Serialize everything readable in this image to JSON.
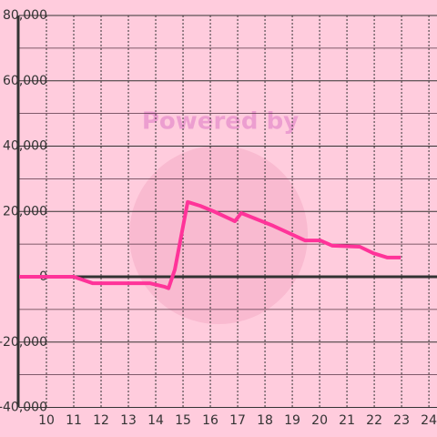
{
  "chart_data": {
    "type": "line",
    "watermark": "Powered by",
    "series": [
      {
        "color": "#ff3399",
        "x": [
          9,
          11,
          11.7,
          13.8,
          14.3,
          14.47,
          14.7,
          15.17,
          15.63,
          16.13,
          16.9,
          17.13,
          18.3,
          19.47,
          20.03,
          20.47,
          21.47,
          21.97,
          22.47,
          22.97
        ],
        "values": [
          0,
          0,
          -2000,
          -2000,
          -3000,
          -3500,
          2200,
          22900,
          21700,
          20000,
          17000,
          19500,
          15600,
          11100,
          11100,
          9500,
          9200,
          7200,
          5900,
          5900
        ]
      }
    ],
    "xlim": [
      9,
      24.33
    ],
    "xticks": [
      10,
      11,
      12,
      13,
      14,
      15,
      16,
      17,
      18,
      19,
      20,
      21,
      22,
      23,
      24
    ],
    "ylim": [
      -40000,
      80000
    ],
    "yticks": [
      {
        "value": -40000,
        "label": "-40,000"
      },
      {
        "value": -20000,
        "label": "-20,000"
      },
      0,
      {
        "value": 20000,
        "label": "20,000"
      },
      {
        "value": 40000,
        "label": "40,000"
      },
      {
        "value": 60000,
        "label": "60,000"
      },
      {
        "value": 80000,
        "label": "80,000"
      }
    ],
    "minor_yticks": [
      -30000,
      -10000,
      10000,
      30000,
      50000,
      70000
    ],
    "grid": true
  }
}
